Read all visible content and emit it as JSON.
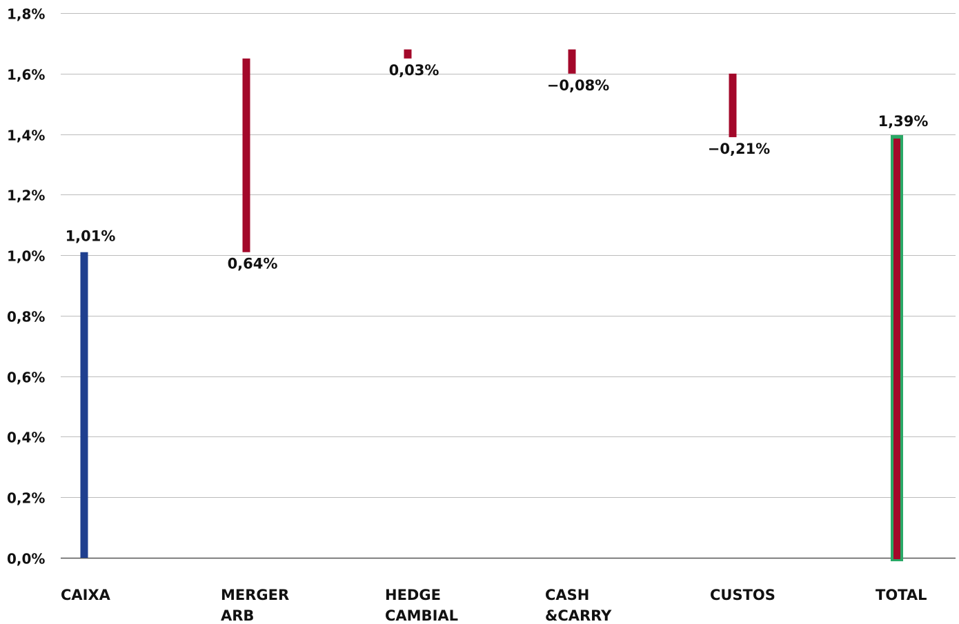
{
  "chart_data": {
    "type": "bar",
    "subtype": "waterfall",
    "categories": [
      {
        "lines": [
          "CAIXA"
        ]
      },
      {
        "lines": [
          "MERGER",
          "ARB"
        ]
      },
      {
        "lines": [
          "HEDGE",
          "CAMBIAL"
        ]
      },
      {
        "lines": [
          "CASH",
          "&CARRY"
        ]
      },
      {
        "lines": [
          "CUSTOS"
        ]
      },
      {
        "lines": [
          "TOTAL"
        ]
      }
    ],
    "bars": [
      {
        "category": "CAIXA",
        "kind": "start",
        "start": 0.0,
        "end": 1.01,
        "label": "1,01%",
        "label_position": "above"
      },
      {
        "category": "MERGER ARB",
        "kind": "delta",
        "start": 1.01,
        "end": 1.65,
        "label": "0,64%",
        "label_position": "below"
      },
      {
        "category": "HEDGE CAMBIAL",
        "kind": "delta",
        "start": 1.65,
        "end": 1.68,
        "label": "0,03%",
        "label_position": "below"
      },
      {
        "category": "CASH &CARRY",
        "kind": "delta",
        "start": 1.68,
        "end": 1.6,
        "label": "−0,08%",
        "label_position": "below"
      },
      {
        "category": "CUSTOS",
        "kind": "delta",
        "start": 1.6,
        "end": 1.39,
        "label": "−0,21%",
        "label_position": "below"
      },
      {
        "category": "TOTAL",
        "kind": "total",
        "start": 0.0,
        "end": 1.39,
        "label": "1,39%",
        "label_position": "above"
      }
    ],
    "y_ticks": [
      {
        "value": 0.0,
        "label": "0,0%"
      },
      {
        "value": 0.2,
        "label": "0,2%"
      },
      {
        "value": 0.4,
        "label": "0,4%"
      },
      {
        "value": 0.6,
        "label": "0,6%"
      },
      {
        "value": 0.8,
        "label": "0,8%"
      },
      {
        "value": 1.0,
        "label": "1,0%"
      },
      {
        "value": 1.2,
        "label": "1,2%"
      },
      {
        "value": 1.4,
        "label": "1,4%"
      },
      {
        "value": 1.6,
        "label": "1,6%"
      },
      {
        "value": 1.8,
        "label": "1,8%"
      }
    ],
    "ylim": [
      0,
      1.8
    ],
    "grid": true,
    "colors": {
      "start": "#1f3f8f",
      "delta": "#a3082a",
      "total_fill": "#a3082a",
      "total_outline": "#2aa866",
      "grid": "#bbbbbb",
      "axis": "#555555",
      "text": "#111111"
    }
  }
}
